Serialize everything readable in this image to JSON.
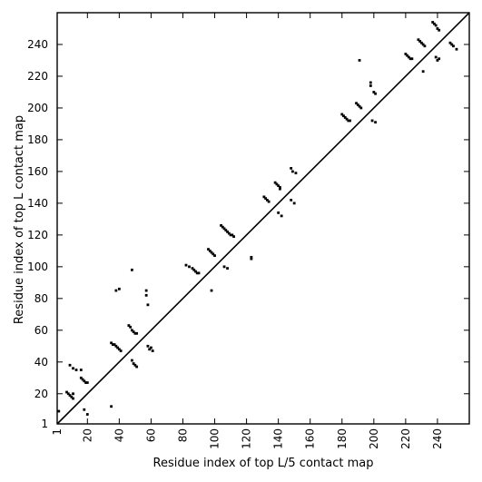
{
  "chart_data": {
    "type": "scatter",
    "title": "",
    "xlabel": "Residue index of top L/5 contact map",
    "ylabel": "Residue index of top L contact map",
    "xlim": [
      1,
      260
    ],
    "ylim": [
      1,
      260
    ],
    "grid": false,
    "legend": "none",
    "xticks": [
      1,
      20,
      40,
      60,
      80,
      100,
      120,
      140,
      160,
      180,
      200,
      220,
      240
    ],
    "yticks": [
      1,
      20,
      40,
      60,
      80,
      100,
      120,
      140,
      160,
      180,
      200,
      220,
      240
    ],
    "xtick_labels": [
      "1",
      "20",
      "40",
      "60",
      "80",
      "100",
      "120",
      "140",
      "160",
      "180",
      "200",
      "220",
      "240"
    ],
    "ytick_labels": [
      "1",
      "20",
      "40",
      "60",
      "80",
      "100",
      "120",
      "140",
      "160",
      "180",
      "200",
      "220",
      "240"
    ],
    "diagonal": [
      [
        1,
        1
      ],
      [
        260,
        260
      ]
    ],
    "marker_color": "#000000",
    "series": [
      {
        "points": [
          [
            2,
            9
          ],
          [
            7,
            21
          ],
          [
            8,
            20
          ],
          [
            9,
            19
          ],
          [
            10,
            18
          ],
          [
            11,
            17
          ],
          [
            11,
            20
          ],
          [
            9,
            38
          ],
          [
            11,
            36
          ],
          [
            13,
            35
          ],
          [
            16,
            35
          ],
          [
            16,
            30
          ],
          [
            17,
            29
          ],
          [
            18,
            28
          ],
          [
            19,
            27
          ],
          [
            20,
            27
          ],
          [
            18,
            10
          ],
          [
            20,
            7
          ],
          [
            35,
            12
          ],
          [
            35,
            52
          ],
          [
            36,
            51
          ],
          [
            37,
            51
          ],
          [
            38,
            50
          ],
          [
            39,
            49
          ],
          [
            40,
            48
          ],
          [
            41,
            47
          ],
          [
            38,
            85
          ],
          [
            40,
            86
          ],
          [
            46,
            63
          ],
          [
            47,
            62
          ],
          [
            48,
            60
          ],
          [
            49,
            59
          ],
          [
            50,
            58
          ],
          [
            51,
            58
          ],
          [
            48,
            98
          ],
          [
            48,
            41
          ],
          [
            49,
            39
          ],
          [
            50,
            38
          ],
          [
            51,
            37
          ],
          [
            57,
            85
          ],
          [
            57,
            82
          ],
          [
            58,
            76
          ],
          [
            58,
            50
          ],
          [
            59,
            48
          ],
          [
            60,
            49
          ],
          [
            61,
            47
          ],
          [
            82,
            101
          ],
          [
            84,
            100
          ],
          [
            86,
            99
          ],
          [
            87,
            98
          ],
          [
            88,
            97
          ],
          [
            89,
            96
          ],
          [
            90,
            96
          ],
          [
            96,
            111
          ],
          [
            97,
            110
          ],
          [
            98,
            109
          ],
          [
            99,
            108
          ],
          [
            100,
            107
          ],
          [
            98,
            85
          ],
          [
            104,
            126
          ],
          [
            105,
            125
          ],
          [
            106,
            124
          ],
          [
            107,
            123
          ],
          [
            108,
            122
          ],
          [
            109,
            121
          ],
          [
            110,
            120
          ],
          [
            111,
            120
          ],
          [
            112,
            119
          ],
          [
            106,
            100
          ],
          [
            108,
            99
          ],
          [
            123,
            106
          ],
          [
            123,
            105
          ],
          [
            131,
            144
          ],
          [
            132,
            143
          ],
          [
            133,
            142
          ],
          [
            134,
            141
          ],
          [
            138,
            153
          ],
          [
            139,
            152
          ],
          [
            140,
            151
          ],
          [
            141,
            150
          ],
          [
            141,
            149
          ],
          [
            140,
            134
          ],
          [
            142,
            132
          ],
          [
            148,
            162
          ],
          [
            149,
            160
          ],
          [
            151,
            159
          ],
          [
            148,
            142
          ],
          [
            150,
            140
          ],
          [
            180,
            196
          ],
          [
            181,
            195
          ],
          [
            182,
            194
          ],
          [
            183,
            193
          ],
          [
            184,
            192
          ],
          [
            185,
            192
          ],
          [
            189,
            203
          ],
          [
            190,
            202
          ],
          [
            191,
            201
          ],
          [
            192,
            200
          ],
          [
            191,
            230
          ],
          [
            198,
            216
          ],
          [
            198,
            214
          ],
          [
            200,
            210
          ],
          [
            201,
            209
          ],
          [
            199,
            192
          ],
          [
            201,
            191
          ],
          [
            220,
            234
          ],
          [
            221,
            233
          ],
          [
            222,
            232
          ],
          [
            223,
            231
          ],
          [
            224,
            231
          ],
          [
            228,
            243
          ],
          [
            229,
            242
          ],
          [
            230,
            241
          ],
          [
            231,
            240
          ],
          [
            232,
            239
          ],
          [
            231,
            223
          ],
          [
            237,
            254
          ],
          [
            238,
            253
          ],
          [
            239,
            252
          ],
          [
            240,
            250
          ],
          [
            241,
            249
          ],
          [
            239,
            232
          ],
          [
            240,
            230
          ],
          [
            241,
            231
          ],
          [
            248,
            241
          ],
          [
            249,
            240
          ],
          [
            250,
            239
          ],
          [
            252,
            237
          ]
        ]
      }
    ]
  }
}
